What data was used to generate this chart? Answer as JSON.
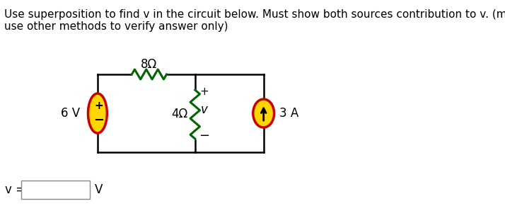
{
  "title_line1": "Use superposition to find v in the circuit below. Must show both sources contribution to v. (may",
  "title_line2": "use other methods to verify answer only)",
  "voltage_source_label": "6 V",
  "resistor1_label": "8Ω",
  "resistor2_label": "4Ω",
  "v_label": "v",
  "current_source_label": "3 A",
  "plus_sign": "+",
  "minus_sign": "−",
  "answer_prefix": "v =",
  "answer_suffix": "V",
  "bg_color": "#ffffff",
  "text_color": "#000000",
  "wire_color": "#000000",
  "resistor_color": "#006400",
  "vs_fill": "#FFD700",
  "vs_stroke": "#CC0000",
  "cs_fill": "#FFD700",
  "cs_stroke": "#CC0000",
  "title_fontsize": 11,
  "label_fontsize": 12
}
